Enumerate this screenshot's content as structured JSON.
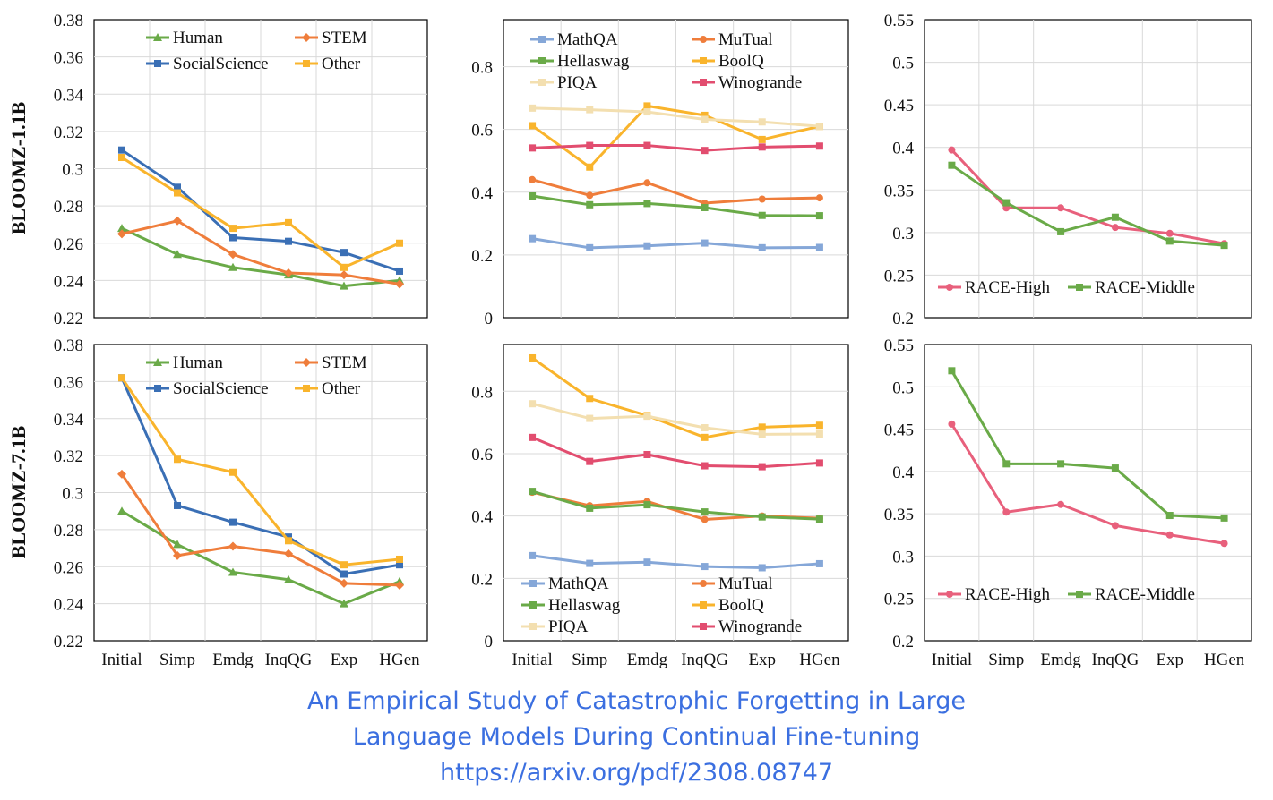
{
  "categories": [
    "Initial",
    "Simp",
    "Emdg",
    "InqQG",
    "Exp",
    "HGen"
  ],
  "row_labels": [
    "BLOOMZ-1.1B",
    "BLOOMZ-7.1B"
  ],
  "caption": {
    "line1": "An Empirical Study of Catastrophic Forgetting in Large",
    "line2": "Language Models During Continual Fine-tuning",
    "line3": "https://arxiv.org/pdf/2308.08747"
  },
  "colors": {
    "Human": "#6aaa48",
    "STEM": "#ef7d3b",
    "SocialScience": "#3a6fb5",
    "Other": "#f9b42c",
    "MathQA": "#85a7d8",
    "MuTual": "#ef7d3b",
    "Hellaswag": "#6aaa48",
    "BoolQ": "#f9b42c",
    "PIQA": "#f3dfb0",
    "Winogrande": "#e24d6f",
    "RACE-High": "#e8607c",
    "RACE-Middle": "#6aaa48",
    "caption": "#3b6fe0"
  },
  "chart_data": [
    {
      "type": "line",
      "row": "BLOOMZ-1.1B",
      "column": 1,
      "ylim": [
        0.22,
        0.38
      ],
      "yticks": [
        "0.22",
        "0.24",
        "0.26",
        "0.28",
        "0.3",
        "0.32",
        "0.34",
        "0.36",
        "0.38"
      ],
      "legend": "top",
      "series": [
        {
          "name": "Human",
          "marker": "triangle",
          "values": [
            0.268,
            0.254,
            0.247,
            0.243,
            0.237,
            0.24
          ]
        },
        {
          "name": "STEM",
          "marker": "diamond",
          "values": [
            0.265,
            0.272,
            0.254,
            0.244,
            0.243,
            0.238
          ]
        },
        {
          "name": "SocialScience",
          "marker": "square",
          "values": [
            0.31,
            0.29,
            0.263,
            0.261,
            0.255,
            0.245
          ]
        },
        {
          "name": "Other",
          "marker": "square",
          "values": [
            0.306,
            0.287,
            0.268,
            0.271,
            0.247,
            0.26
          ]
        }
      ]
    },
    {
      "type": "line",
      "row": "BLOOMZ-1.1B",
      "column": 2,
      "ylim": [
        0,
        0.95
      ],
      "yticks": [
        "0",
        "0.2",
        "0.4",
        "0.6",
        "0.8"
      ],
      "legend": "top",
      "series": [
        {
          "name": "MathQA",
          "marker": "square",
          "values": [
            0.252,
            0.223,
            0.229,
            0.238,
            0.223,
            0.224
          ]
        },
        {
          "name": "MuTual",
          "marker": "circle",
          "values": [
            0.44,
            0.39,
            0.43,
            0.365,
            0.378,
            0.382
          ]
        },
        {
          "name": "Hellaswag",
          "marker": "square",
          "values": [
            0.388,
            0.36,
            0.364,
            0.351,
            0.326,
            0.325
          ]
        },
        {
          "name": "BoolQ",
          "marker": "square",
          "values": [
            0.612,
            0.48,
            0.675,
            0.645,
            0.568,
            0.61
          ]
        },
        {
          "name": "PIQA",
          "marker": "square",
          "values": [
            0.668,
            0.663,
            0.656,
            0.632,
            0.624,
            0.61
          ]
        },
        {
          "name": "Winogrande",
          "marker": "square",
          "values": [
            0.541,
            0.549,
            0.549,
            0.533,
            0.544,
            0.547
          ]
        }
      ]
    },
    {
      "type": "line",
      "row": "BLOOMZ-1.1B",
      "column": 3,
      "ylim": [
        0.2,
        0.55
      ],
      "yticks": [
        "0.2",
        "0.25",
        "0.3",
        "0.35",
        "0.4",
        "0.45",
        "0.5",
        "0.55"
      ],
      "legend": "bottom",
      "series": [
        {
          "name": "RACE-High",
          "marker": "circle",
          "values": [
            0.397,
            0.329,
            0.329,
            0.306,
            0.299,
            0.287
          ]
        },
        {
          "name": "RACE-Middle",
          "marker": "square",
          "values": [
            0.379,
            0.335,
            0.301,
            0.318,
            0.29,
            0.285
          ]
        }
      ]
    },
    {
      "type": "line",
      "row": "BLOOMZ-7.1B",
      "column": 1,
      "ylim": [
        0.22,
        0.38
      ],
      "yticks": [
        "0.22",
        "0.24",
        "0.26",
        "0.28",
        "0.3",
        "0.32",
        "0.34",
        "0.36",
        "0.38"
      ],
      "legend": "top",
      "series": [
        {
          "name": "Human",
          "marker": "triangle",
          "values": [
            0.29,
            0.272,
            0.257,
            0.253,
            0.24,
            0.252
          ]
        },
        {
          "name": "STEM",
          "marker": "diamond",
          "values": [
            0.31,
            0.266,
            0.271,
            0.267,
            0.251,
            0.25
          ]
        },
        {
          "name": "SocialScience",
          "marker": "square",
          "values": [
            0.362,
            0.293,
            0.284,
            0.276,
            0.256,
            0.261
          ]
        },
        {
          "name": "Other",
          "marker": "square",
          "values": [
            0.362,
            0.318,
            0.311,
            0.274,
            0.261,
            0.264
          ]
        }
      ]
    },
    {
      "type": "line",
      "row": "BLOOMZ-7.1B",
      "column": 2,
      "ylim": [
        0,
        0.95
      ],
      "yticks": [
        "0",
        "0.2",
        "0.4",
        "0.6",
        "0.8"
      ],
      "legend": "bottom",
      "series": [
        {
          "name": "MathQA",
          "marker": "square",
          "values": [
            0.273,
            0.248,
            0.252,
            0.238,
            0.234,
            0.247
          ]
        },
        {
          "name": "MuTual",
          "marker": "circle",
          "values": [
            0.476,
            0.433,
            0.447,
            0.389,
            0.4,
            0.393
          ]
        },
        {
          "name": "Hellaswag",
          "marker": "square",
          "values": [
            0.479,
            0.425,
            0.436,
            0.413,
            0.397,
            0.39
          ]
        },
        {
          "name": "BoolQ",
          "marker": "square",
          "values": [
            0.907,
            0.777,
            0.722,
            0.652,
            0.685,
            0.691
          ]
        },
        {
          "name": "PIQA",
          "marker": "square",
          "values": [
            0.76,
            0.713,
            0.72,
            0.683,
            0.662,
            0.663
          ]
        },
        {
          "name": "Winogrande",
          "marker": "square",
          "values": [
            0.652,
            0.575,
            0.597,
            0.561,
            0.558,
            0.57
          ]
        }
      ]
    },
    {
      "type": "line",
      "row": "BLOOMZ-7.1B",
      "column": 3,
      "ylim": [
        0.2,
        0.55
      ],
      "yticks": [
        "0.2",
        "0.25",
        "0.3",
        "0.35",
        "0.4",
        "0.45",
        "0.5",
        "0.55"
      ],
      "legend": "bottom",
      "series": [
        {
          "name": "RACE-High",
          "marker": "circle",
          "values": [
            0.456,
            0.352,
            0.361,
            0.336,
            0.325,
            0.315
          ]
        },
        {
          "name": "RACE-Middle",
          "marker": "square",
          "values": [
            0.519,
            0.409,
            0.409,
            0.404,
            0.348,
            0.345
          ]
        }
      ]
    }
  ]
}
